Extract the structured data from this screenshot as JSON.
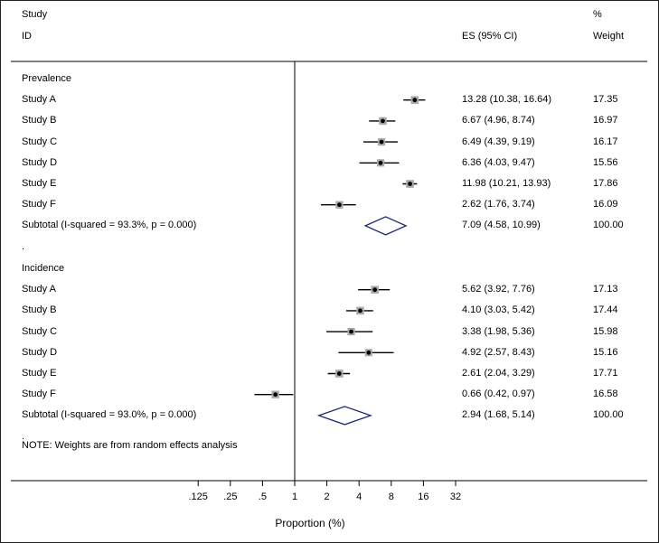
{
  "header": {
    "col1_line1": "Study",
    "col1_line2": "ID",
    "es_label": "ES (95% CI)",
    "weight_line1": "%",
    "weight_line2": "Weight"
  },
  "footnote": "NOTE: Weights are from random effects analysis",
  "colors": {
    "diamond": "#1f2a6e",
    "box": "#a9a9a9",
    "line": "#000000"
  },
  "chart_data": {
    "type": "forest",
    "scale": "log2",
    "xlabel": "Proportion (%)",
    "xticks": [
      0.125,
      0.25,
      0.5,
      1,
      2,
      4,
      8,
      16,
      32
    ],
    "xtick_labels": [
      ".125",
      ".25",
      ".5",
      "1",
      "2",
      "4",
      "8",
      "16",
      "32"
    ],
    "null_line": 1,
    "groups": [
      {
        "name": "Prevalence",
        "studies": [
          {
            "label": "Study A",
            "es": 13.28,
            "lo": 10.38,
            "hi": 16.64,
            "ci_text": "13.28 (10.38, 16.64)",
            "weight": 17.35,
            "weight_text": "17.35"
          },
          {
            "label": "Study B",
            "es": 6.67,
            "lo": 4.96,
            "hi": 8.74,
            "ci_text": "6.67 (4.96, 8.74)",
            "weight": 16.97,
            "weight_text": "16.97"
          },
          {
            "label": "Study C",
            "es": 6.49,
            "lo": 4.39,
            "hi": 9.19,
            "ci_text": "6.49 (4.39, 9.19)",
            "weight": 16.17,
            "weight_text": "16.17"
          },
          {
            "label": "Study D",
            "es": 6.36,
            "lo": 4.03,
            "hi": 9.47,
            "ci_text": "6.36 (4.03, 9.47)",
            "weight": 15.56,
            "weight_text": "15.56"
          },
          {
            "label": "Study E",
            "es": 11.98,
            "lo": 10.21,
            "hi": 13.93,
            "ci_text": "11.98 (10.21, 13.93)",
            "weight": 17.86,
            "weight_text": "17.86"
          },
          {
            "label": "Study F",
            "es": 2.62,
            "lo": 1.76,
            "hi": 3.74,
            "ci_text": "2.62 (1.76, 3.74)",
            "weight": 16.09,
            "weight_text": "16.09"
          }
        ],
        "subtotal": {
          "label": "Subtotal  (I-squared = 93.3%, p = 0.000)",
          "es": 7.09,
          "lo": 4.58,
          "hi": 10.99,
          "ci_text": "7.09 (4.58, 10.99)",
          "weight_text": "100.00"
        },
        "separator": "."
      },
      {
        "name": "Incidence",
        "studies": [
          {
            "label": "Study A",
            "es": 5.62,
            "lo": 3.92,
            "hi": 7.76,
            "ci_text": "5.62 (3.92, 7.76)",
            "weight": 17.13,
            "weight_text": "17.13"
          },
          {
            "label": "Study B",
            "es": 4.1,
            "lo": 3.03,
            "hi": 5.42,
            "ci_text": "4.10 (3.03, 5.42)",
            "weight": 17.44,
            "weight_text": "17.44"
          },
          {
            "label": "Study C",
            "es": 3.38,
            "lo": 1.98,
            "hi": 5.36,
            "ci_text": "3.38 (1.98, 5.36)",
            "weight": 15.98,
            "weight_text": "15.98"
          },
          {
            "label": "Study D",
            "es": 4.92,
            "lo": 2.57,
            "hi": 8.43,
            "ci_text": "4.92 (2.57, 8.43)",
            "weight": 15.16,
            "weight_text": "15.16"
          },
          {
            "label": "Study E",
            "es": 2.61,
            "lo": 2.04,
            "hi": 3.29,
            "ci_text": "2.61 (2.04, 3.29)",
            "weight": 17.71,
            "weight_text": "17.71"
          },
          {
            "label": "Study F",
            "es": 0.66,
            "lo": 0.42,
            "hi": 0.97,
            "ci_text": "0.66 (0.42, 0.97)",
            "weight": 16.58,
            "weight_text": "16.58"
          }
        ],
        "subtotal": {
          "label": "Subtotal  (I-squared = 93.0%, p = 0.000)",
          "es": 2.94,
          "lo": 1.68,
          "hi": 5.14,
          "ci_text": "2.94 (1.68, 5.14)",
          "weight_text": "100.00"
        },
        "separator": "."
      }
    ]
  }
}
